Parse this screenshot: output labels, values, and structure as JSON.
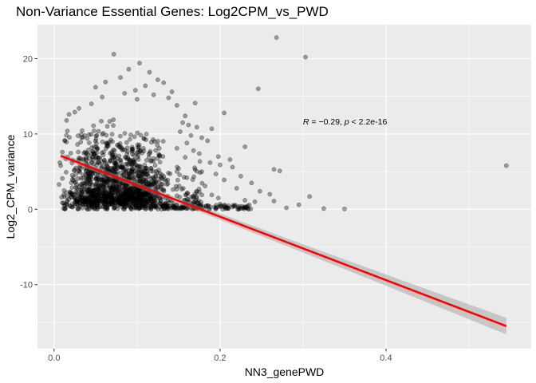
{
  "chart_data": {
    "type": "scatter",
    "title": "Non-Variance Essential Genes: Log2CPM_vs_PWD",
    "xlabel": "NN3_genePWD",
    "ylabel": "Log2_CPM_variance",
    "xlim": [
      -0.02,
      0.575
    ],
    "ylim": [
      -18.5,
      24.5
    ],
    "x_ticks": [
      0.0,
      0.2,
      0.4
    ],
    "x_tick_labels": [
      "0.0",
      "0.2",
      "0.4"
    ],
    "y_ticks": [
      -10,
      0,
      10,
      20
    ],
    "y_tick_labels": [
      "-10",
      "0",
      "10",
      "20"
    ],
    "grid": true,
    "point_color": "#000000",
    "point_opacity": 0.35,
    "line_color": "#ff0000",
    "band_color": "#999999",
    "annotation": {
      "r_symbol": "R",
      "r_value": " = −0.29, ",
      "p_symbol": "p",
      "p_value": " < 2.2e-16",
      "x": 0.3,
      "y": 11.7
    },
    "regression": {
      "x": [
        0.008,
        0.545
      ],
      "y": [
        7.1,
        -15.5
      ],
      "band_halfwidth": [
        0.35,
        1.1
      ]
    },
    "dense_region": {
      "x_range": [
        0.01,
        0.18
      ],
      "y_range": [
        0,
        12.5
      ]
    },
    "series": [
      {
        "points": [
          [
            0.072,
            20.6
          ],
          [
            0.268,
            22.8
          ],
          [
            0.303,
            20.2
          ],
          [
            0.103,
            19.4
          ],
          [
            0.09,
            18.6
          ],
          [
            0.115,
            18.2
          ],
          [
            0.08,
            17.5
          ],
          [
            0.125,
            17.2
          ],
          [
            0.062,
            16.9
          ],
          [
            0.132,
            16.8
          ],
          [
            0.11,
            16.4
          ],
          [
            0.05,
            16.2
          ],
          [
            0.246,
            16.0
          ],
          [
            0.098,
            15.8
          ],
          [
            0.142,
            15.6
          ],
          [
            0.085,
            15.4
          ],
          [
            0.12,
            15.2
          ],
          [
            0.058,
            14.9
          ],
          [
            0.138,
            14.8
          ],
          [
            0.1,
            14.6
          ],
          [
            0.17,
            14.1
          ],
          [
            0.045,
            14.0
          ],
          [
            0.148,
            13.8
          ],
          [
            0.03,
            13.4
          ],
          [
            0.025,
            12.9
          ],
          [
            0.018,
            12.6
          ],
          [
            0.015,
            11.8
          ],
          [
            0.158,
            12.4
          ],
          [
            0.205,
            12.8
          ],
          [
            0.155,
            11.5
          ],
          [
            0.162,
            11.2
          ],
          [
            0.172,
            10.9
          ],
          [
            0.19,
            10.7
          ],
          [
            0.152,
            10.3
          ],
          [
            0.165,
            9.8
          ],
          [
            0.178,
            9.5
          ],
          [
            0.185,
            9.1
          ],
          [
            0.16,
            8.8
          ],
          [
            0.23,
            8.3
          ],
          [
            0.148,
            8.1
          ],
          [
            0.168,
            7.8
          ],
          [
            0.175,
            7.4
          ],
          [
            0.198,
            7.0
          ],
          [
            0.212,
            6.6
          ],
          [
            0.158,
            6.9
          ],
          [
            0.188,
            6.2
          ],
          [
            0.2,
            5.9
          ],
          [
            0.215,
            5.6
          ],
          [
            0.265,
            5.3
          ],
          [
            0.272,
            5.1
          ],
          [
            0.545,
            5.8
          ],
          [
            0.178,
            5.0
          ],
          [
            0.195,
            4.7
          ],
          [
            0.225,
            4.4
          ],
          [
            0.16,
            4.2
          ],
          [
            0.205,
            3.9
          ],
          [
            0.238,
            3.5
          ],
          [
            0.182,
            3.1
          ],
          [
            0.22,
            2.8
          ],
          [
            0.248,
            2.4
          ],
          [
            0.26,
            2.0
          ],
          [
            0.308,
            1.7
          ],
          [
            0.198,
            1.5
          ],
          [
            0.23,
            1.2
          ],
          [
            0.265,
            1.1
          ],
          [
            0.242,
            1.0
          ],
          [
            0.295,
            0.6
          ],
          [
            0.2,
            0.7
          ],
          [
            0.215,
            0.3
          ],
          [
            0.185,
            0.5
          ],
          [
            0.232,
            0.2
          ],
          [
            0.325,
            0.1
          ],
          [
            0.35,
            0.05
          ],
          [
            0.28,
            0.2
          ],
          [
            0.21,
            0.1
          ],
          [
            0.175,
            2.3
          ],
          [
            0.168,
            0.9
          ],
          [
            0.19,
            1.9
          ],
          [
            0.008,
            5.8
          ],
          [
            0.01,
            4.1
          ],
          [
            0.012,
            2.5
          ],
          [
            0.009,
            1.6
          ],
          [
            0.011,
            0.8
          ],
          [
            0.014,
            6.7
          ],
          [
            0.02,
            0.4
          ],
          [
            0.013,
            9.1
          ],
          [
            0.016,
            10.4
          ],
          [
            0.006,
            3.3
          ],
          [
            0.007,
            6.2
          ],
          [
            0.01,
            7.6
          ]
        ]
      }
    ]
  }
}
